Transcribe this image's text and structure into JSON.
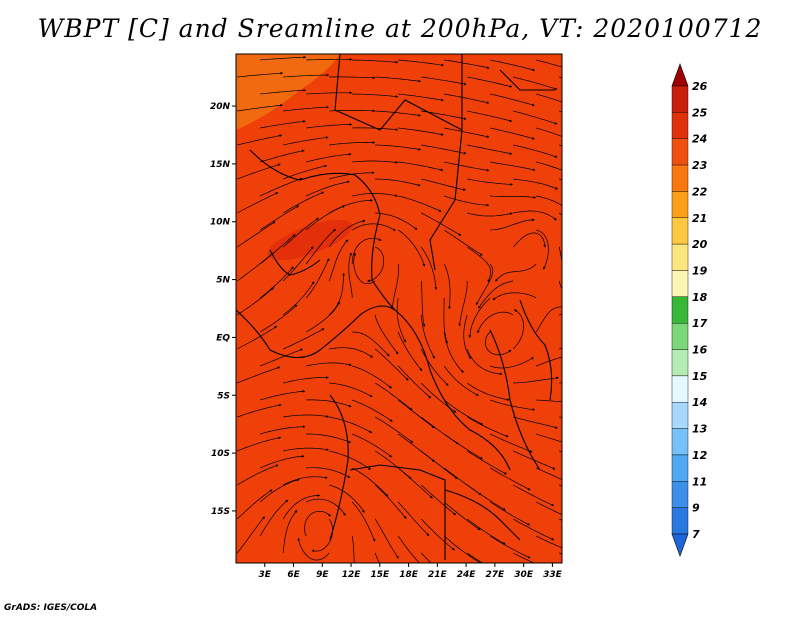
{
  "title": "WBPT [C] and Sreamline at 200hPa, VT: 2020100712",
  "credit": "GrADS: IGES/COLA",
  "map": {
    "lat_labels": [
      "20N",
      "15N",
      "10N",
      "5N",
      "EQ",
      "5S",
      "10S",
      "15S"
    ],
    "lat_values": [
      20,
      15,
      10,
      5,
      0,
      -5,
      -10,
      -15
    ],
    "lon_labels": [
      "3E",
      "6E",
      "9E",
      "12E",
      "15E",
      "18E",
      "21E",
      "24E",
      "27E",
      "30E",
      "33E"
    ],
    "lon_values": [
      3,
      6,
      9,
      12,
      15,
      18,
      21,
      24,
      27,
      30,
      33
    ],
    "lat_range": [
      -19.5,
      24.5
    ],
    "lon_range": [
      0,
      34
    ],
    "field_fill_color": "#f0400a",
    "field_warm_color": "#f26a0f",
    "field_hot_color": "#e4300a",
    "streamline_color": "#000000"
  },
  "colorbar": {
    "labels": [
      "26",
      "25",
      "24",
      "23",
      "22",
      "21",
      "20",
      "19",
      "18",
      "17",
      "16",
      "15",
      "14",
      "13",
      "12",
      "11",
      "9",
      "7"
    ],
    "colors": [
      "#a00000",
      "#c81e0a",
      "#e0320a",
      "#f0500f",
      "#fa780f",
      "#fca019",
      "#fcc840",
      "#fce680",
      "#fcf5b4",
      "#38b838",
      "#7ad87a",
      "#b4ecb4",
      "#e4f8ff",
      "#a8d8fc",
      "#78c0f8",
      "#50a8f0",
      "#3c90e8",
      "#2878e0",
      "#1e64dc"
    ]
  }
}
